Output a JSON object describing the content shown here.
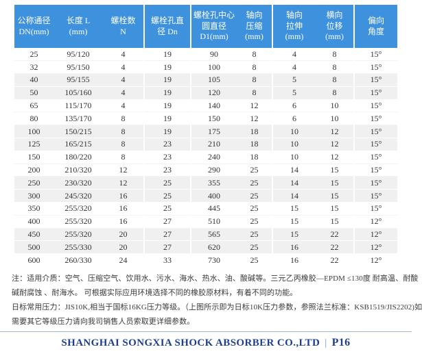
{
  "colors": {
    "header_bg": "#3E91DC",
    "header_text": "#FFFFFF",
    "row_alt_bg": "#F0F0F0",
    "body_text": "#333333",
    "note_text": "#3A3A3A",
    "footer_text": "#1C3E8C",
    "footer_rule": "#9DB7D6"
  },
  "table": {
    "headers": [
      {
        "id": "dn",
        "lines": [
          "公称通径",
          "DN(mm)"
        ]
      },
      {
        "id": "length",
        "lines": [
          "长度 L",
          "(mm)"
        ]
      },
      {
        "id": "bolt-count",
        "lines": [
          "螺栓数",
          "N"
        ]
      },
      {
        "id": "bolt-hole-dia",
        "lines": [
          "螺栓孔直",
          "径 Dn"
        ]
      },
      {
        "id": "bolt-circle-dia",
        "lines": [
          "螺栓孔中心",
          "圆直径",
          "D1(mm)"
        ]
      },
      {
        "id": "axial-compression",
        "lines": [
          "轴向",
          "压缩",
          "(mm)"
        ]
      },
      {
        "id": "axial-extension",
        "lines": [
          "轴向",
          "拉伸",
          "(mm)"
        ]
      },
      {
        "id": "lateral-displacement",
        "lines": [
          "横向",
          "位移",
          "(mm)"
        ]
      },
      {
        "id": "deflection-angle",
        "lines": [
          "偏向",
          "角度"
        ]
      }
    ],
    "rows": [
      [
        "25",
        "95/120",
        "4",
        "19",
        "90",
        "8",
        "4",
        "8",
        "15°"
      ],
      [
        "32",
        "95/150",
        "4",
        "19",
        "100",
        "8",
        "4",
        "8",
        "15°"
      ],
      [
        "40",
        "95/155",
        "4",
        "19",
        "105",
        "8",
        "5",
        "8",
        "15°"
      ],
      [
        "50",
        "105/160",
        "4",
        "19",
        "120",
        "8",
        "5",
        "8",
        "15°"
      ],
      [
        "65",
        "115/170",
        "4",
        "19",
        "140",
        "12",
        "6",
        "10",
        "15°"
      ],
      [
        "80",
        "135/170",
        "8",
        "19",
        "150",
        "12",
        "6",
        "10",
        "15°"
      ],
      [
        "100",
        "150/215",
        "8",
        "19",
        "175",
        "18",
        "10",
        "12",
        "15°"
      ],
      [
        "125",
        "165/215",
        "8",
        "23",
        "210",
        "18",
        "10",
        "12",
        "15°"
      ],
      [
        "150",
        "180/220",
        "8",
        "23",
        "240",
        "18",
        "10",
        "12",
        "15°"
      ],
      [
        "200",
        "210/320",
        "12",
        "23",
        "290",
        "25",
        "14",
        "15",
        "15°"
      ],
      [
        "250",
        "230/320",
        "12",
        "25",
        "355",
        "25",
        "14",
        "15",
        "15°"
      ],
      [
        "300",
        "245/320",
        "16",
        "25",
        "400",
        "25",
        "14",
        "15",
        "15°"
      ],
      [
        "350",
        "255/320",
        "16",
        "25",
        "445",
        "25",
        "15",
        "15",
        "15°"
      ],
      [
        "400",
        "255/320",
        "16",
        "27",
        "510",
        "25",
        "15",
        "15",
        "12°"
      ],
      [
        "450",
        "255/320",
        "20",
        "27",
        "565",
        "25",
        "15",
        "22",
        "12°"
      ],
      [
        "500",
        "255/330",
        "20",
        "27",
        "620",
        "25",
        "16",
        "22",
        "12°"
      ],
      [
        "600",
        "260/330",
        "24",
        "33",
        "730",
        "25",
        "16",
        "22",
        "12°"
      ]
    ]
  },
  "notes": {
    "lines": [
      "注：适用介质：空气、压缩空气、饮用水、污水、海水、热水、油、酸碱等。三元乙丙橡胶—EPDM ≤130度 耐高温、耐酸",
      "碱耐腐蚀 、耐海水。 可根据实际应用环境选择不同的橡胶原材料，有着不同的功能。",
      "日标常用压力：JIS10K,相当于国标16KG压力等级。（上图所示即为日标10K压力参数，参照法兰标准：KSB1519/JIS2202)如",
      "需要其它等级压力请向我司销售人员索取更详细参数。"
    ]
  },
  "footer": {
    "company": "SHANGHAI SONGXIA SHOCK ABSORBER CO.,LTD",
    "separator": "|",
    "page": "P16"
  }
}
